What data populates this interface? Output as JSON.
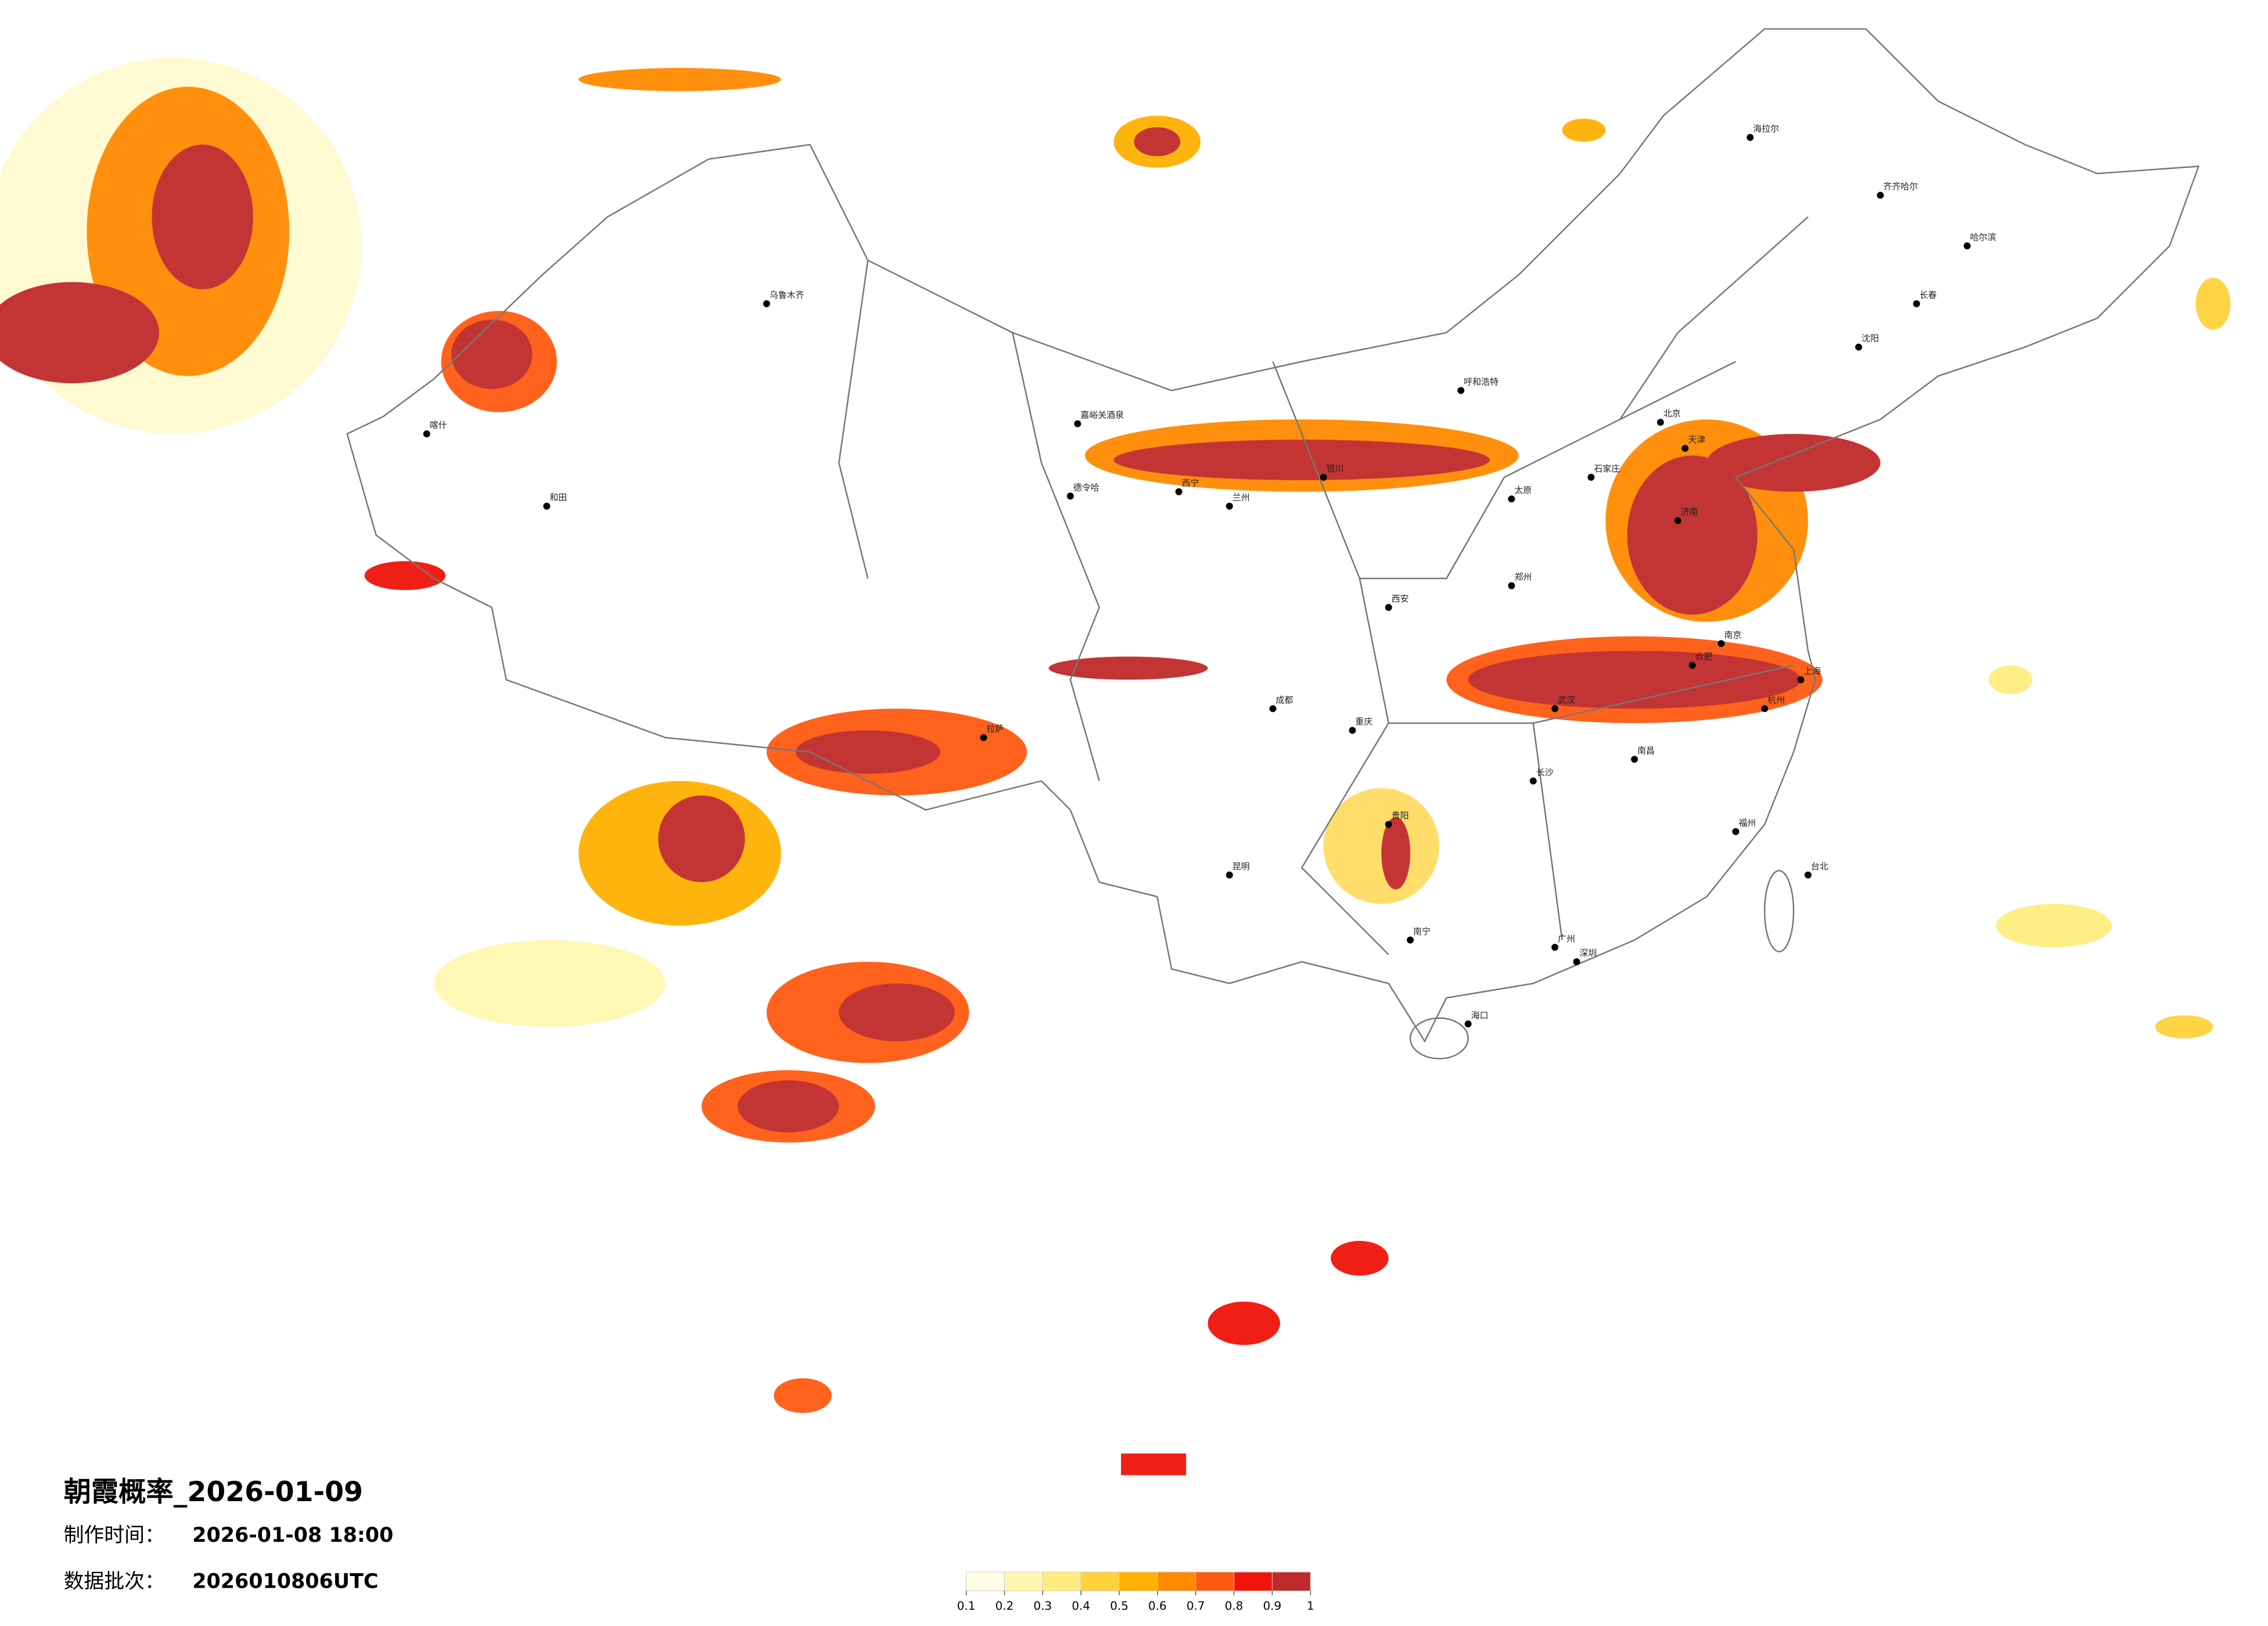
{
  "title": "朝霞概率_2026-01-09",
  "made_label": "制作时间：",
  "made_time": "2026-01-08 18:00",
  "batch_label": "数据批次：",
  "batch": "2026010806UTC",
  "legend": {
    "colors": [
      "#fffde8",
      "#fff7b0",
      "#ffec80",
      "#ffd23c",
      "#ffb000",
      "#ff8a00",
      "#ff5a10",
      "#f0140a",
      "#c02a2a"
    ],
    "ticks": [
      0.1,
      0.2,
      0.3,
      0.4,
      0.5,
      0.6,
      0.7,
      0.8,
      0.9,
      1
    ]
  },
  "cities": [
    "北京",
    "天津",
    "上海",
    "广州",
    "深圳",
    "重庆",
    "成都",
    "武汉",
    "西安",
    "郑州",
    "南京",
    "杭州",
    "长沙",
    "哈尔滨",
    "长春",
    "沈阳",
    "乌鲁木齐",
    "拉萨",
    "兰州",
    "昆明",
    "贵阳",
    "南宁",
    "海口",
    "台北",
    "呼和浩特",
    "银川",
    "西宁",
    "太原",
    "石家庄",
    "济南",
    "福州",
    "南昌",
    "合肥",
    "和田",
    "喀什",
    "海拉尔",
    "齐齐哈尔",
    "德令哈",
    "嘉峪关酒泉"
  ]
}
